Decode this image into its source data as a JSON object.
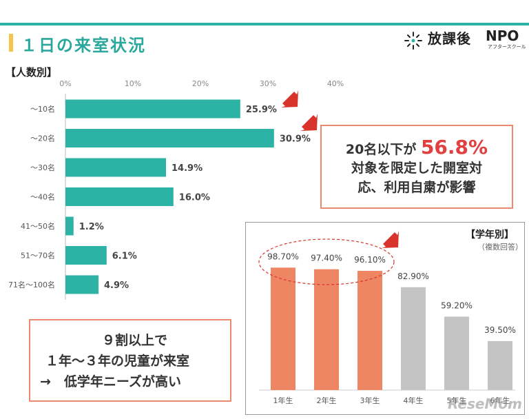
{
  "header": {
    "title": "１日の来室状況",
    "logo_text": "放課後",
    "logo_npo": "NPO",
    "logo_sub": "アフタースクール"
  },
  "section_label": "【人数別】",
  "callout1": {
    "prefix": "20名以下が ",
    "highlight": "56.8%",
    "line2": "対象を限定した開室対",
    "line3": "応、利用自粛が影響"
  },
  "callout2": {
    "line1": "９割以上で",
    "line2": "１年～３年の児童が来室",
    "line3": "→　低学年ニーズが高い"
  },
  "panel2": {
    "title": "【学年別】",
    "subtitle": "（複数回答）"
  },
  "watermark": "ReseMom",
  "colors": {
    "teal": "#2db3a6",
    "orange": "#ee8563",
    "gray": "#c4c4c4",
    "highlight_red": "#e04040"
  },
  "chart_data": [
    {
      "type": "bar",
      "orientation": "horizontal",
      "title": "【人数別】",
      "categories": [
        "～10名",
        "～20名",
        "～30名",
        "～40名",
        "41～50名",
        "51～70名",
        "71名～100名"
      ],
      "values": [
        25.9,
        30.9,
        14.9,
        16.0,
        1.2,
        6.1,
        4.9
      ],
      "value_labels": [
        "25.9%",
        "30.9%",
        "14.9%",
        "16.0%",
        "1.2%",
        "6.1%",
        "4.9%"
      ],
      "xlim": [
        0,
        40
      ],
      "ticks": [
        "0%",
        "10%",
        "20%",
        "30%",
        "40%"
      ]
    },
    {
      "type": "bar",
      "orientation": "vertical",
      "title": "【学年別】",
      "categories": [
        "1年生",
        "2年生",
        "3年生",
        "4年生",
        "5年生",
        "6年生"
      ],
      "values": [
        98.7,
        97.4,
        96.1,
        82.9,
        59.2,
        39.5
      ],
      "value_labels": [
        "98.70%",
        "97.40%",
        "96.10%",
        "82.90%",
        "59.20%",
        "39.50%"
      ],
      "highlighted": [
        true,
        true,
        true,
        false,
        false,
        false
      ],
      "ylim": [
        0,
        100
      ]
    }
  ]
}
